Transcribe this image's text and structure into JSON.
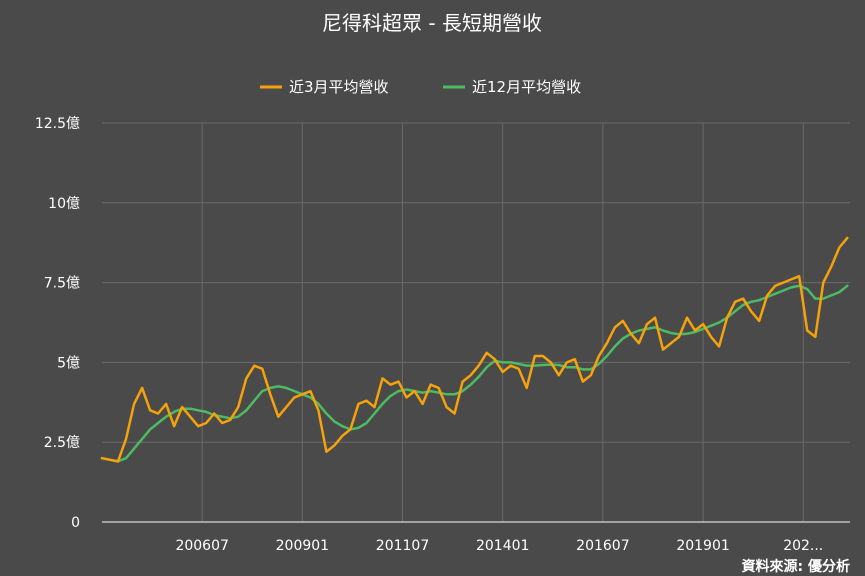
{
  "chart_data": {
    "type": "line",
    "title": "尼得科超眾 - 長短期營收",
    "source": "資料來源: 優分析",
    "legend": "top",
    "grid": true,
    "xlabel": "",
    "ylabel": "",
    "ylim": [
      0,
      12.5
    ],
    "y_ticks": [
      0,
      2.5,
      5,
      7.5,
      10,
      12.5
    ],
    "y_tick_labels": [
      "0",
      "2.5億",
      "5億",
      "7.5億",
      "10億",
      "12.5億"
    ],
    "x_range": [
      2004.0,
      2022.667
    ],
    "x_ticks": [
      2006.5,
      2009.0,
      2011.5,
      2014.0,
      2016.5,
      2019.0,
      2021.5
    ],
    "x_tick_labels": [
      "200607",
      "200901",
      "201107",
      "201401",
      "201607",
      "201901",
      "202..."
    ],
    "series": [
      {
        "name": "近3月平均營收",
        "color": "#f5a20b",
        "x": [
          2004.0,
          2004.2,
          2004.4,
          2004.6,
          2004.8,
          2005.0,
          2005.2,
          2005.4,
          2005.6,
          2005.8,
          2006.0,
          2006.2,
          2006.4,
          2006.6,
          2006.8,
          2007.0,
          2007.2,
          2007.4,
          2007.6,
          2007.8,
          2008.0,
          2008.2,
          2008.4,
          2008.6,
          2008.8,
          2009.0,
          2009.2,
          2009.4,
          2009.6,
          2009.8,
          2010.0,
          2010.2,
          2010.4,
          2010.6,
          2010.8,
          2011.0,
          2011.2,
          2011.4,
          2011.6,
          2011.8,
          2012.0,
          2012.2,
          2012.4,
          2012.6,
          2012.8,
          2013.0,
          2013.2,
          2013.4,
          2013.6,
          2013.8,
          2014.0,
          2014.2,
          2014.4,
          2014.6,
          2014.8,
          2015.0,
          2015.2,
          2015.4,
          2015.6,
          2015.8,
          2016.0,
          2016.2,
          2016.4,
          2016.6,
          2016.8,
          2017.0,
          2017.2,
          2017.4,
          2017.6,
          2017.8,
          2018.0,
          2018.2,
          2018.4,
          2018.6,
          2018.8,
          2019.0,
          2019.2,
          2019.4,
          2019.6,
          2019.8,
          2020.0,
          2020.2,
          2020.4,
          2020.6,
          2020.8,
          2021.0,
          2021.2,
          2021.4,
          2021.6,
          2021.8,
          2022.0,
          2022.2,
          2022.4,
          2022.6
        ],
        "y": [
          2.0,
          1.95,
          1.9,
          2.6,
          3.7,
          4.2,
          3.5,
          3.4,
          3.7,
          3.0,
          3.6,
          3.3,
          3.0,
          3.1,
          3.4,
          3.1,
          3.2,
          3.6,
          4.5,
          4.9,
          4.8,
          4.0,
          3.3,
          3.6,
          3.9,
          4.0,
          4.1,
          3.5,
          2.2,
          2.4,
          2.7,
          2.9,
          3.7,
          3.8,
          3.6,
          4.5,
          4.3,
          4.4,
          3.9,
          4.1,
          3.7,
          4.3,
          4.2,
          3.6,
          3.4,
          4.4,
          4.6,
          4.9,
          5.3,
          5.1,
          4.7,
          4.9,
          4.8,
          4.2,
          5.2,
          5.2,
          5.0,
          4.6,
          5.0,
          5.1,
          4.4,
          4.6,
          5.2,
          5.6,
          6.1,
          6.3,
          5.9,
          5.6,
          6.2,
          6.4,
          5.4,
          5.6,
          5.8,
          6.4,
          6.0,
          6.2,
          5.8,
          5.5,
          6.4,
          6.9,
          7.0,
          6.6,
          6.3,
          7.1,
          7.4,
          7.5,
          7.6,
          7.7,
          6.0,
          5.8,
          7.5,
          8.0,
          8.6,
          8.9
        ]
      },
      {
        "name": "近12月平均營收",
        "color": "#4dbb62",
        "x": [
          2004.0,
          2004.2,
          2004.4,
          2004.6,
          2004.8,
          2005.0,
          2005.2,
          2005.4,
          2005.6,
          2005.8,
          2006.0,
          2006.2,
          2006.4,
          2006.6,
          2006.8,
          2007.0,
          2007.2,
          2007.4,
          2007.6,
          2007.8,
          2008.0,
          2008.2,
          2008.4,
          2008.6,
          2008.8,
          2009.0,
          2009.2,
          2009.4,
          2009.6,
          2009.8,
          2010.0,
          2010.2,
          2010.4,
          2010.6,
          2010.8,
          2011.0,
          2011.2,
          2011.4,
          2011.6,
          2011.8,
          2012.0,
          2012.2,
          2012.4,
          2012.6,
          2012.8,
          2013.0,
          2013.2,
          2013.4,
          2013.6,
          2013.8,
          2014.0,
          2014.2,
          2014.4,
          2014.6,
          2014.8,
          2015.0,
          2015.2,
          2015.4,
          2015.6,
          2015.8,
          2016.0,
          2016.2,
          2016.4,
          2016.6,
          2016.8,
          2017.0,
          2017.2,
          2017.4,
          2017.6,
          2017.8,
          2018.0,
          2018.2,
          2018.4,
          2018.6,
          2018.8,
          2019.0,
          2019.2,
          2019.4,
          2019.6,
          2019.8,
          2020.0,
          2020.2,
          2020.4,
          2020.6,
          2020.8,
          2021.0,
          2021.2,
          2021.4,
          2021.6,
          2021.8,
          2022.0,
          2022.2,
          2022.4,
          2022.6
        ],
        "y": [
          2.0,
          1.95,
          1.9,
          2.0,
          2.3,
          2.6,
          2.9,
          3.1,
          3.3,
          3.45,
          3.55,
          3.55,
          3.5,
          3.45,
          3.35,
          3.3,
          3.25,
          3.3,
          3.5,
          3.8,
          4.1,
          4.2,
          4.25,
          4.2,
          4.1,
          4.0,
          3.9,
          3.7,
          3.4,
          3.15,
          3.0,
          2.9,
          2.95,
          3.1,
          3.4,
          3.7,
          3.95,
          4.1,
          4.15,
          4.1,
          4.05,
          4.1,
          4.05,
          4.0,
          4.0,
          4.1,
          4.3,
          4.55,
          4.85,
          5.05,
          5.0,
          5.0,
          4.95,
          4.9,
          4.9,
          4.92,
          4.93,
          4.92,
          4.85,
          4.85,
          4.78,
          4.78,
          4.95,
          5.2,
          5.5,
          5.75,
          5.9,
          6.0,
          6.05,
          6.1,
          6.0,
          5.92,
          5.88,
          5.9,
          5.95,
          6.05,
          6.15,
          6.25,
          6.4,
          6.6,
          6.8,
          6.9,
          6.95,
          7.05,
          7.15,
          7.25,
          7.35,
          7.4,
          7.3,
          7.0,
          7.0,
          7.1,
          7.2,
          7.4
        ]
      }
    ]
  }
}
